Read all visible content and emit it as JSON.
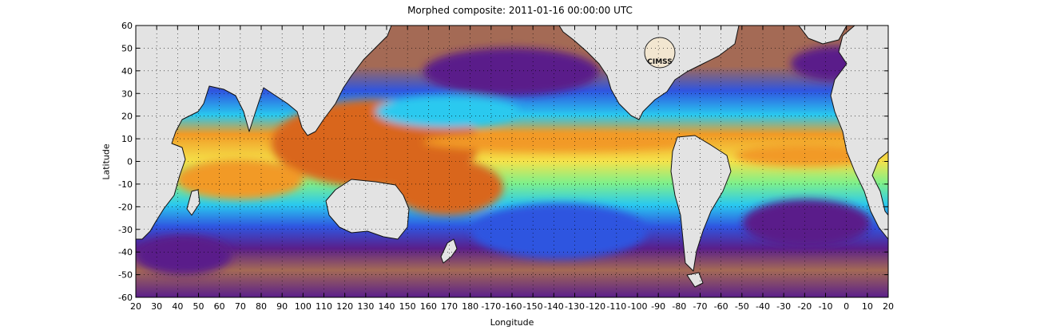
{
  "title": "Morphed composite: 2011-01-16 00:00:00 UTC",
  "map": {
    "xlabel": "Longitude",
    "ylabel": "Latitude",
    "x_ticks": [
      "20",
      "30",
      "40",
      "50",
      "60",
      "70",
      "80",
      "90",
      "100",
      "110",
      "120",
      "130",
      "140",
      "150",
      "160",
      "170",
      "180",
      "-170",
      "-160",
      "-150",
      "-140",
      "-130",
      "-120",
      "-110",
      "-100",
      "-90",
      "-80",
      "-70",
      "-60",
      "-50",
      "-40",
      "-30",
      "-20",
      "-10",
      "0",
      "10",
      "20"
    ],
    "y_ticks": [
      "60",
      "50",
      "40",
      "30",
      "20",
      "10",
      "0",
      "-10",
      "-20",
      "-30",
      "-40",
      "-50",
      "-60"
    ],
    "lon_range": [
      20,
      380
    ],
    "lat_range": [
      -60,
      60
    ],
    "grid": "dotted",
    "land_color": "#e3e3e3",
    "logo_text": "CIMSS",
    "field_colors": {
      "very_dry": "#5a1f8a",
      "dry": "#a46a55",
      "low": "#2f55e0",
      "mid_low": "#29c9ef",
      "mid": "#7ff08a",
      "mid_high": "#f4e34b",
      "high": "#f29a25",
      "very_high": "#d9661a"
    }
  }
}
